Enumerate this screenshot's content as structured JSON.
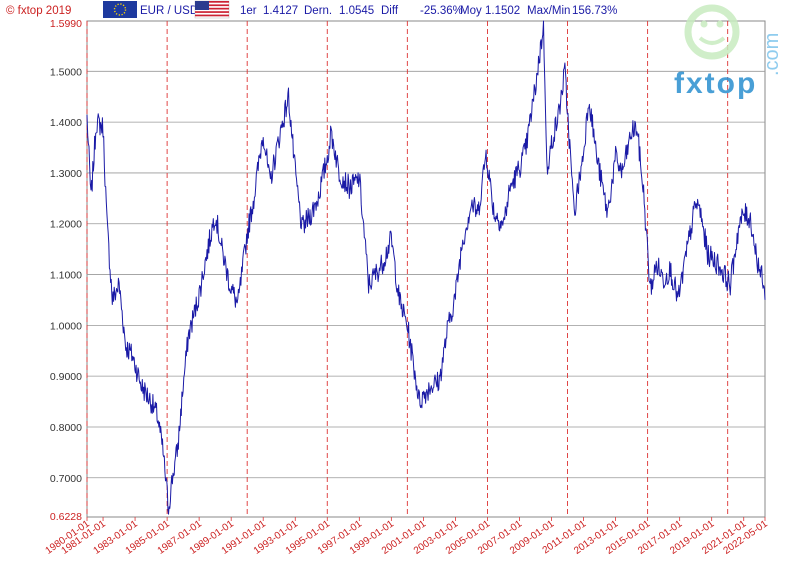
{
  "header": {
    "copyright": "© fxtop 2019",
    "pair": "EUR / USD",
    "first_label": "1er",
    "first_value": "1.4127",
    "last_label": "Dern.",
    "last_value": "1.0545",
    "diff_label": "Diff",
    "diff_value": "-25.36%",
    "avg_label": "Moy",
    "avg_value": "1.1502",
    "maxmin_label": "Max/Min",
    "maxmin_value": "156.73%"
  },
  "logo": {
    "text": "fxtop",
    "suffix": ".com"
  },
  "colors": {
    "line": "#1a1aa6",
    "grid_h": "#999999",
    "grid_v": "#dd3333",
    "axis_text_red": "#cc2222"
  },
  "chart_data": {
    "type": "line",
    "title": "",
    "xlabel": "",
    "ylabel": "",
    "ylim": [
      0.6228,
      1.599
    ],
    "y_ticks": [
      0.7,
      0.8,
      0.9,
      1.0,
      1.1,
      1.2,
      1.3,
      1.4,
      1.5
    ],
    "y_tick_labels": [
      "0.7000",
      "0.8000",
      "0.9000",
      "1.0000",
      "1.1000",
      "1.2000",
      "1.3000",
      "1.4000",
      "1.5000"
    ],
    "y_min_label": "0.6228",
    "y_max_label": "1.5990",
    "x_range": [
      "1980-01-01",
      "2022-05-01"
    ],
    "x_tick_labels": [
      "1980-01-01",
      "1981-01-01",
      "1983-01-01",
      "1985-01-01",
      "1987-01-01",
      "1989-01-01",
      "1991-01-01",
      "1993-01-01",
      "1995-01-01",
      "1997-01-01",
      "1999-01-01",
      "2001-01-01",
      "2003-01-01",
      "2005-01-01",
      "2007-01-01",
      "2009-01-01",
      "2011-01-01",
      "2013-01-01",
      "2015-01-01",
      "2017-01-01",
      "2019-01-01",
      "2021-01-01",
      "2022-05-01"
    ],
    "x_tick_dates": [
      "1980-01-01",
      "1981-01-01",
      "1983-01-01",
      "1985-01-01",
      "1987-01-01",
      "1989-01-01",
      "1991-01-01",
      "1993-01-01",
      "1995-01-01",
      "1997-01-01",
      "1999-01-01",
      "2001-01-01",
      "2003-01-01",
      "2005-01-01",
      "2007-01-01",
      "2009-01-01",
      "2011-01-01",
      "2013-01-01",
      "2015-01-01",
      "2017-01-01",
      "2019-01-01",
      "2021-01-01",
      "2022-05-01"
    ],
    "major_vlines": [
      "1980-01-01",
      "1985-01-01",
      "1990-01-01",
      "1995-01-01",
      "2000-01-01",
      "2005-01-01",
      "2010-01-01",
      "2015-01-01",
      "2020-01-01"
    ],
    "grid": true,
    "series": [
      {
        "x": [
          "1980-01-01",
          "1980-04-01",
          "1980-08-01",
          "1981-01-01",
          "1981-04-01",
          "1981-08-01",
          "1982-01-01",
          "1982-06-01",
          "1982-11-01",
          "1983-06-01",
          "1984-01-01",
          "1984-06-01",
          "1984-10-01",
          "1985-02-01",
          "1985-05-01",
          "1985-09-01",
          "1986-01-01",
          "1986-05-01",
          "1986-09-01",
          "1987-01-01",
          "1987-06-01",
          "1988-01-01",
          "1988-06-01",
          "1988-12-01",
          "1989-06-01",
          "1990-01-01",
          "1990-06-01",
          "1991-01-01",
          "1991-06-01",
          "1992-01-01",
          "1992-08-01",
          "1993-01-01",
          "1993-06-01",
          "1994-01-01",
          "1994-06-01",
          "1995-01-01",
          "1995-04-01",
          "1995-10-01",
          "1996-06-01",
          "1997-01-01",
          "1997-08-01",
          "1998-06-01",
          "1999-01-01",
          "1999-07-01",
          "2000-01-01",
          "2000-10-01",
          "2001-06-01",
          "2002-01-01",
          "2002-07-01",
          "2003-01-01",
          "2003-06-01",
          "2004-01-01",
          "2004-06-01",
          "2004-12-01",
          "2005-06-01",
          "2006-01-01",
          "2006-06-01",
          "2007-01-01",
          "2007-06-01",
          "2008-01-01",
          "2008-07-01",
          "2008-10-01",
          "2009-01-01",
          "2009-06-01",
          "2009-11-01",
          "2010-06-01",
          "2011-01-01",
          "2011-05-01",
          "2011-11-01",
          "2012-07-01",
          "2013-01-01",
          "2013-06-01",
          "2014-01-01",
          "2014-05-01",
          "2014-10-01",
          "2015-03-01",
          "2015-08-01",
          "2016-01-01",
          "2016-06-01",
          "2016-12-01",
          "2017-06-01",
          "2018-01-01",
          "2018-04-01",
          "2018-10-01",
          "2019-06-01",
          "2020-03-01",
          "2020-09-01",
          "2021-01-01",
          "2021-06-01",
          "2021-11-01",
          "2022-03-01",
          "2022-05-01"
        ],
        "y": [
          1.41,
          1.25,
          1.4,
          1.39,
          1.2,
          1.05,
          1.08,
          0.96,
          0.94,
          0.88,
          0.85,
          0.82,
          0.75,
          0.64,
          0.7,
          0.76,
          0.88,
          0.98,
          1.02,
          1.06,
          1.13,
          1.22,
          1.15,
          1.08,
          1.04,
          1.18,
          1.25,
          1.38,
          1.28,
          1.37,
          1.45,
          1.3,
          1.19,
          1.22,
          1.25,
          1.33,
          1.38,
          1.3,
          1.27,
          1.29,
          1.08,
          1.12,
          1.17,
          1.05,
          1.0,
          0.85,
          0.88,
          0.89,
          0.99,
          1.06,
          1.16,
          1.24,
          1.22,
          1.34,
          1.22,
          1.2,
          1.27,
          1.31,
          1.35,
          1.47,
          1.59,
          1.29,
          1.36,
          1.41,
          1.5,
          1.22,
          1.34,
          1.45,
          1.33,
          1.22,
          1.33,
          1.3,
          1.38,
          1.39,
          1.26,
          1.07,
          1.12,
          1.09,
          1.11,
          1.05,
          1.14,
          1.24,
          1.23,
          1.14,
          1.12,
          1.08,
          1.19,
          1.22,
          1.21,
          1.13,
          1.09,
          1.05
        ]
      }
    ]
  }
}
